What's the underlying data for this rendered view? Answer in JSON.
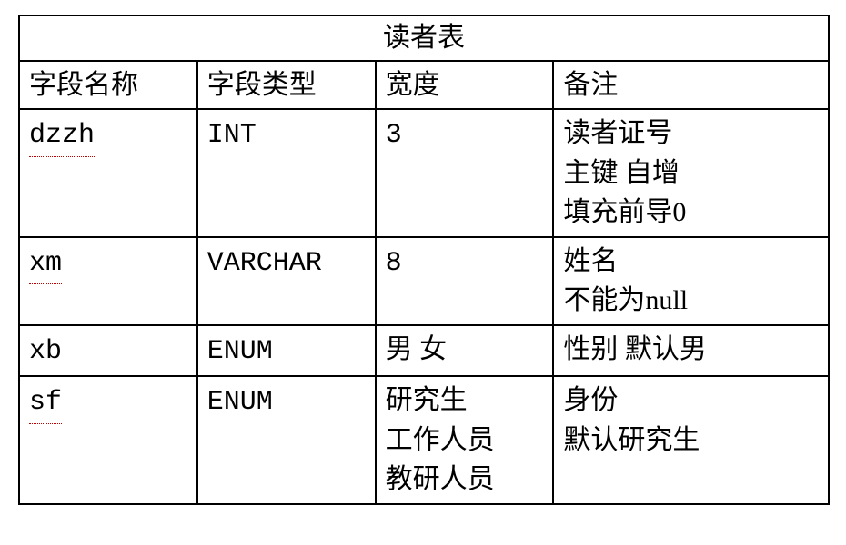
{
  "table": {
    "title": "读者表",
    "colWidths": [
      "22%",
      "22%",
      "22%",
      "34%"
    ],
    "border_color": "#000000",
    "background_color": "#ffffff",
    "text_color": "#000000",
    "underline_color": "#c00000",
    "font_size_pt": 22,
    "header": {
      "c0": "字段名称",
      "c1": "字段类型",
      "c2": "宽度",
      "c3": "备注"
    },
    "rows": [
      {
        "name": "dzzh",
        "type": "INT",
        "width": "3",
        "remark": [
          "读者证号",
          "主键  自增",
          "填充前导0"
        ]
      },
      {
        "name": "xm",
        "type": "VARCHAR",
        "width": "8",
        "remark": [
          "姓名",
          "不能为null"
        ]
      },
      {
        "name": "xb",
        "type": "ENUM",
        "width": "男  女",
        "remark": [
          "性别  默认男"
        ]
      },
      {
        "name": "sf",
        "type": "ENUM",
        "width_multi": [
          "研究生",
          "工作人员",
          "教研人员"
        ],
        "remark": [
          "身份",
          "默认研究生"
        ]
      }
    ]
  }
}
